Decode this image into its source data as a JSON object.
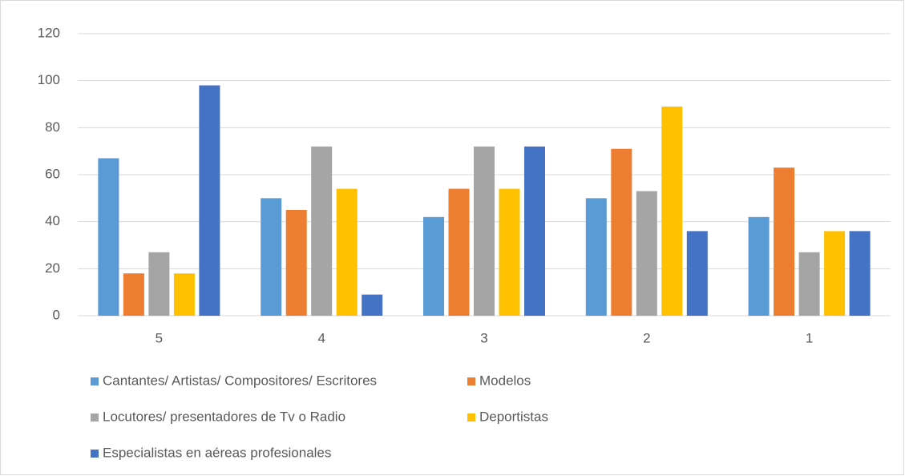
{
  "chart_data": {
    "type": "bar",
    "categories": [
      "5",
      "4",
      "3",
      "2",
      "1"
    ],
    "series": [
      {
        "name": "Cantantes/ Artistas/ Compositores/ Escritores",
        "color": "#5b9bd5",
        "values": [
          67,
          50,
          42,
          50,
          42
        ]
      },
      {
        "name": "Modelos",
        "color": "#ed7d31",
        "values": [
          18,
          45,
          54,
          71,
          63
        ]
      },
      {
        "name": "Locutores/ presentadores de Tv o Radio",
        "color": "#a5a5a5",
        "values": [
          27,
          72,
          72,
          53,
          27
        ]
      },
      {
        "name": "Deportistas",
        "color": "#ffc000",
        "values": [
          18,
          54,
          54,
          89,
          36
        ]
      },
      {
        "name": "Especialistas en aéreas profesionales",
        "color": "#4472c4",
        "values": [
          98,
          9,
          72,
          36,
          36
        ]
      }
    ],
    "ylim": [
      0,
      120
    ],
    "yticks": [
      0,
      20,
      40,
      60,
      80,
      100,
      120
    ],
    "grid": true,
    "legend": "bottom"
  }
}
